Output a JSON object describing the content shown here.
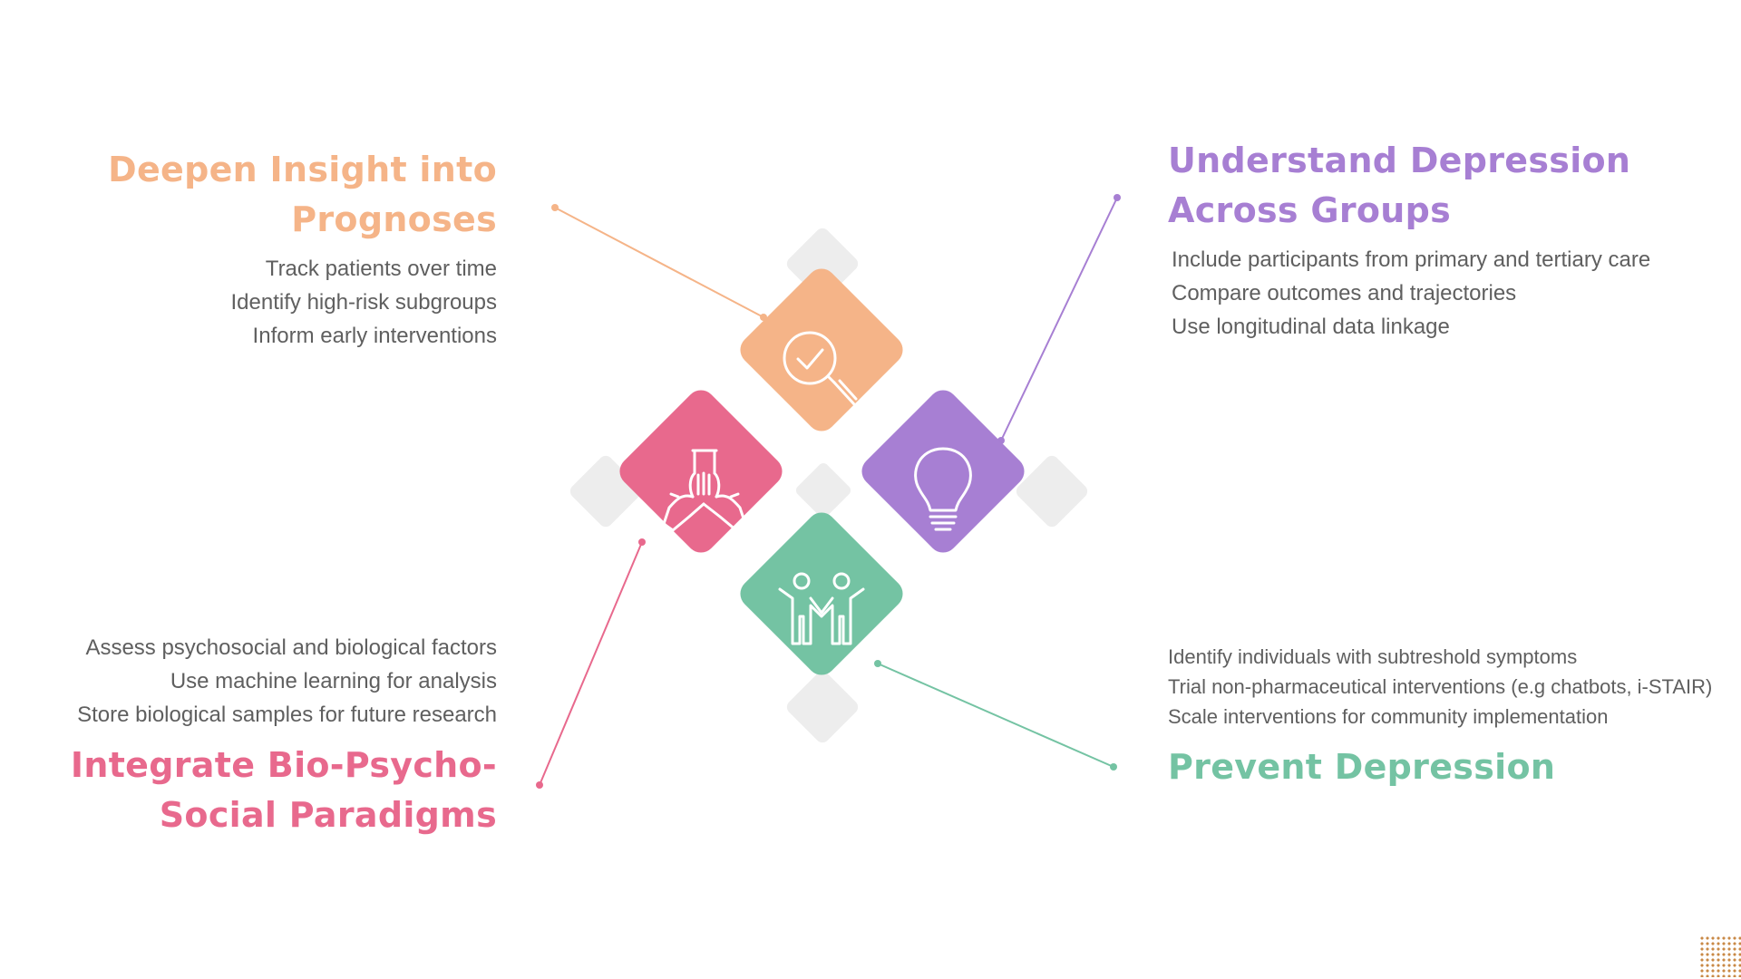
{
  "colors": {
    "orange": "#f5b488",
    "purple": "#a77fd3",
    "pink": "#e8698d",
    "green": "#74c3a3",
    "shadow": "#ededed",
    "text": "#5f5f5f"
  },
  "blocks": {
    "top_left": {
      "title_line1": "Deepen Insight into",
      "title_line2": "Prognoses",
      "items": [
        "Track patients over time",
        "Identify high-risk subgroups",
        "Inform early interventions"
      ],
      "icon": "magnifier-check-icon"
    },
    "top_right": {
      "title_line1": "Understand Depression",
      "title_line2": "Across Groups",
      "items": [
        "Include participants from primary and tertiary care",
        "Compare outcomes and trajectories",
        "Use longitudinal data linkage"
      ],
      "icon": "lightbulb-icon"
    },
    "bottom_left": {
      "title_line1": "Integrate Bio-Psycho-",
      "title_line2": "Social Paradigms",
      "items": [
        "Assess psychosocial and biological factors",
        "Use machine learning for analysis",
        "Store biological samples for future research"
      ],
      "icon": "hands-together-icon"
    },
    "bottom_right": {
      "title_line1": "Prevent Depression",
      "items": [
        "Identify individuals with subtreshold symptoms",
        "Trial non-pharmaceutical interventions (e.g chatbots, i-STAIR)",
        "Scale interventions for community implementation"
      ],
      "icon": "two-people-icon"
    }
  }
}
